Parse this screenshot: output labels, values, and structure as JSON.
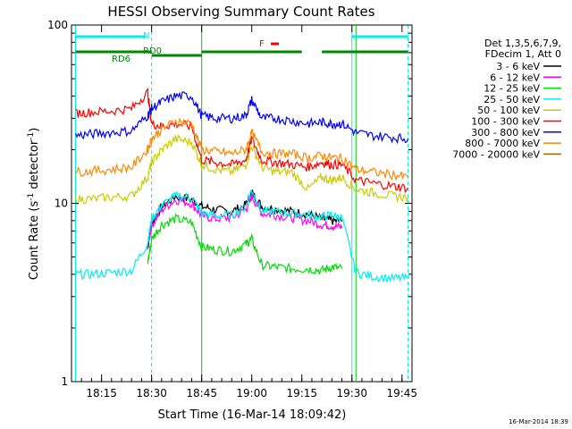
{
  "chart_data": {
    "type": "line",
    "title": "HESSI Observing Summary Count Rates",
    "xlabel": "Start Time (16-Mar-14 18:09:42)",
    "ylabel": "Count Rate (s",
    "ylabel_sup": "-1",
    "ylabel_tail": " detector",
    "ylabel_tail_sup": "-1",
    "ylabel_close": ")",
    "yscale": "log",
    "ylim": [
      1,
      100
    ],
    "xlim_minutes": [
      18.1,
      19.8
    ],
    "xticks": [
      "18:15",
      "18:30",
      "18:45",
      "19:00",
      "19:15",
      "19:30",
      "19:45"
    ],
    "xtick_values": [
      18.25,
      18.5,
      18.75,
      19.0,
      19.25,
      19.5,
      19.75
    ],
    "yticks": [
      "1",
      "10",
      "100"
    ],
    "ytick_values": [
      1,
      10,
      100
    ],
    "legend": {
      "header_1": "Det 1,3,5,6,7,9,",
      "header_2": "FDecim 1, Att 0",
      "placement": "right-outside"
    },
    "series": [
      {
        "name": "3 - 6 keV",
        "color": "#000000",
        "values": [
          [
            18.48,
            5.6
          ],
          [
            18.5,
            7.8
          ],
          [
            18.55,
            9.5
          ],
          [
            18.62,
            11
          ],
          [
            18.7,
            10.5
          ],
          [
            18.75,
            9.6
          ],
          [
            18.82,
            9.2
          ],
          [
            18.9,
            9.0
          ],
          [
            18.97,
            9.8
          ],
          [
            19.0,
            11.5
          ],
          [
            19.05,
            9.6
          ],
          [
            19.12,
            9.3
          ],
          [
            19.2,
            9.0
          ],
          [
            19.28,
            8.7
          ],
          [
            19.35,
            8.2
          ],
          [
            19.4,
            8.0
          ],
          [
            19.45,
            7.9
          ]
        ]
      },
      {
        "name": "6 - 12 keV",
        "color": "#ff00ff",
        "values": [
          [
            18.48,
            5.8
          ],
          [
            18.5,
            7.5
          ],
          [
            18.55,
            9.2
          ],
          [
            18.62,
            10.5
          ],
          [
            18.7,
            10.0
          ],
          [
            18.75,
            8.5
          ],
          [
            18.82,
            8.2
          ],
          [
            18.9,
            8.3
          ],
          [
            18.97,
            9.2
          ],
          [
            19.0,
            11.0
          ],
          [
            19.05,
            8.8
          ],
          [
            19.12,
            8.6
          ],
          [
            19.2,
            8.3
          ],
          [
            19.28,
            8.0
          ],
          [
            19.35,
            7.6
          ],
          [
            19.4,
            7.5
          ],
          [
            19.45,
            7.3
          ]
        ]
      },
      {
        "name": "12 - 25 keV",
        "color": "#00dd00",
        "values": [
          [
            18.48,
            4.6
          ],
          [
            18.5,
            6.3
          ],
          [
            18.55,
            7.6
          ],
          [
            18.62,
            8.2
          ],
          [
            18.7,
            7.8
          ],
          [
            18.75,
            5.7
          ],
          [
            18.82,
            5.5
          ],
          [
            18.9,
            5.4
          ],
          [
            18.97,
            5.9
          ],
          [
            19.0,
            6.3
          ],
          [
            19.05,
            4.5
          ],
          [
            19.12,
            4.4
          ],
          [
            19.2,
            4.3
          ],
          [
            19.28,
            4.3
          ],
          [
            19.35,
            4.2
          ],
          [
            19.4,
            4.4
          ],
          [
            19.45,
            4.3
          ]
        ]
      },
      {
        "name": "25 - 50 keV",
        "color": "#00eeee",
        "values": [
          [
            18.12,
            4.0
          ],
          [
            18.2,
            4.0
          ],
          [
            18.3,
            4.1
          ],
          [
            18.4,
            4.2
          ],
          [
            18.48,
            6.0
          ],
          [
            18.5,
            8.2
          ],
          [
            18.55,
            9.8
          ],
          [
            18.62,
            11
          ],
          [
            18.7,
            10.8
          ],
          [
            18.75,
            8.8
          ],
          [
            18.82,
            8.5
          ],
          [
            18.9,
            8.6
          ],
          [
            18.97,
            9.6
          ],
          [
            19.0,
            12
          ],
          [
            19.05,
            9.0
          ],
          [
            19.12,
            9.0
          ],
          [
            19.2,
            8.8
          ],
          [
            19.28,
            8.6
          ],
          [
            19.35,
            8.4
          ],
          [
            19.4,
            8.6
          ],
          [
            19.45,
            8.3
          ],
          [
            19.52,
            4.1
          ],
          [
            19.6,
            3.9
          ],
          [
            19.7,
            3.8
          ],
          [
            19.78,
            3.8
          ]
        ]
      },
      {
        "name": "50 - 100 keV",
        "color": "#cccc00",
        "values": [
          [
            18.12,
            10.5
          ],
          [
            18.2,
            10.6
          ],
          [
            18.3,
            10.8
          ],
          [
            18.4,
            11.0
          ],
          [
            18.48,
            14
          ],
          [
            18.5,
            17
          ],
          [
            18.55,
            20
          ],
          [
            18.62,
            23
          ],
          [
            18.7,
            22
          ],
          [
            18.75,
            16.5
          ],
          [
            18.82,
            15.5
          ],
          [
            18.9,
            15
          ],
          [
            18.97,
            16.5
          ],
          [
            19.0,
            21
          ],
          [
            19.05,
            16
          ],
          [
            19.12,
            15
          ],
          [
            19.2,
            15
          ],
          [
            19.28,
            12
          ],
          [
            19.35,
            14
          ],
          [
            19.4,
            13.5
          ],
          [
            19.45,
            14
          ],
          [
            19.52,
            12
          ],
          [
            19.6,
            11.5
          ],
          [
            19.7,
            11
          ],
          [
            19.78,
            10.8
          ]
        ]
      },
      {
        "name": "100 - 300 keV",
        "color": "#ff0000",
        "values": [
          [
            18.12,
            32
          ],
          [
            18.2,
            32.5
          ],
          [
            18.3,
            33
          ],
          [
            18.4,
            34
          ],
          [
            18.48,
            42
          ],
          [
            18.5,
            28
          ],
          [
            18.55,
            27
          ],
          [
            18.62,
            28
          ],
          [
            18.7,
            27
          ],
          [
            18.75,
            17.5
          ],
          [
            18.82,
            17
          ],
          [
            18.9,
            16.5
          ],
          [
            18.97,
            17.5
          ],
          [
            19.0,
            23
          ],
          [
            19.05,
            17.5
          ],
          [
            19.12,
            17
          ],
          [
            19.2,
            16.5
          ],
          [
            19.28,
            16
          ],
          [
            19.35,
            17
          ],
          [
            19.4,
            16.5
          ],
          [
            19.45,
            16.5
          ],
          [
            19.52,
            13.5
          ],
          [
            19.6,
            13
          ],
          [
            19.7,
            12.5
          ],
          [
            19.78,
            12.2
          ]
        ]
      },
      {
        "name": "300 - 800 keV",
        "color": "#0000ff",
        "values": [
          [
            18.12,
            24
          ],
          [
            18.2,
            24.5
          ],
          [
            18.3,
            25
          ],
          [
            18.4,
            25.5
          ],
          [
            18.48,
            31
          ],
          [
            18.5,
            34
          ],
          [
            18.55,
            37
          ],
          [
            18.62,
            40
          ],
          [
            18.7,
            40
          ],
          [
            18.75,
            31
          ],
          [
            18.82,
            30
          ],
          [
            18.9,
            30
          ],
          [
            18.97,
            31
          ],
          [
            19.0,
            38
          ],
          [
            19.05,
            30
          ],
          [
            19.12,
            30
          ],
          [
            19.2,
            29
          ],
          [
            19.28,
            28
          ],
          [
            19.35,
            28.5
          ],
          [
            19.4,
            28
          ],
          [
            19.45,
            28
          ],
          [
            19.52,
            25
          ],
          [
            19.6,
            24
          ],
          [
            19.7,
            23.5
          ],
          [
            19.78,
            23
          ]
        ]
      },
      {
        "name": "800 - 7000 keV",
        "color": "#ff8800",
        "values": [
          [
            18.12,
            15
          ],
          [
            18.2,
            15.2
          ],
          [
            18.3,
            15.5
          ],
          [
            18.4,
            16
          ],
          [
            18.48,
            20
          ],
          [
            18.5,
            23
          ],
          [
            18.55,
            26
          ],
          [
            18.62,
            29
          ],
          [
            18.7,
            28
          ],
          [
            18.75,
            20
          ],
          [
            18.82,
            19.5
          ],
          [
            18.9,
            19
          ],
          [
            18.97,
            20
          ],
          [
            19.0,
            25
          ],
          [
            19.05,
            19.5
          ],
          [
            19.12,
            19
          ],
          [
            19.2,
            19
          ],
          [
            19.28,
            18
          ],
          [
            19.35,
            18.5
          ],
          [
            19.4,
            18
          ],
          [
            19.45,
            18
          ],
          [
            19.52,
            15.5
          ],
          [
            19.6,
            15
          ],
          [
            19.7,
            14.5
          ],
          [
            19.78,
            14
          ]
        ]
      },
      {
        "name": "7000 - 20000 keV",
        "color": "#996600",
        "values": []
      }
    ],
    "top_bars": [
      {
        "label": "N",
        "color": "#00eeee"
      },
      {
        "label": "RD6",
        "color": "#008800"
      },
      {
        "label": "RD0",
        "color": "#008800"
      },
      {
        "label": "F",
        "color": "#ff0000"
      }
    ],
    "vlines": [
      {
        "x": 18.12,
        "style": "solid",
        "color": "#00eeee"
      },
      {
        "x": 18.5,
        "style": "dashed",
        "color": "#00eeee"
      },
      {
        "x": 18.75,
        "style": "solid",
        "color": "#00cc00"
      },
      {
        "x": 19.5,
        "style": "solid",
        "color": "#00eeee"
      },
      {
        "x": 19.52,
        "style": "solid",
        "color": "#00cc00"
      },
      {
        "x": 19.78,
        "style": "dashed",
        "color": "#00eeee"
      }
    ]
  },
  "footer": {
    "timestamp": "16-Mar-2014 18:39"
  }
}
